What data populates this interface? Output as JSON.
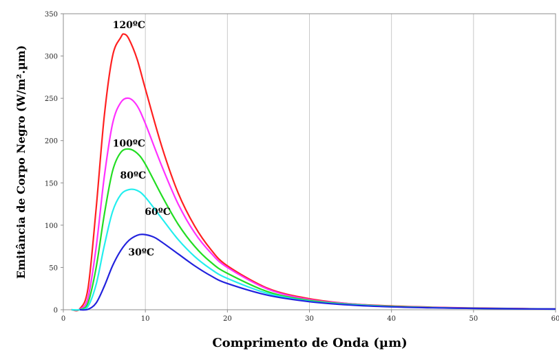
{
  "chart_data": {
    "type": "line",
    "title": "",
    "xlabel": "Comprimento de Onda (µm)",
    "ylabel": "Emitância de Corpo Negro (W/m².µm)",
    "xlim": [
      0,
      60
    ],
    "ylim": [
      0,
      350
    ],
    "xticks": [
      0,
      10,
      20,
      30,
      40,
      50,
      60
    ],
    "yticks": [
      0,
      50,
      100,
      150,
      200,
      250,
      300,
      350
    ],
    "grid": "vertical",
    "legend": "none",
    "series": [
      {
        "name": "120ºC",
        "color": "#ff2020",
        "x": [
          1,
          2,
          3,
          4,
          5,
          6,
          7,
          7.4,
          8,
          9,
          10,
          12,
          14,
          16,
          18,
          20,
          25,
          30,
          35,
          40,
          45,
          50,
          55,
          60
        ],
        "y": [
          0,
          1,
          25,
          120,
          230,
          300,
          322,
          326,
          320,
          296,
          261,
          193,
          138,
          99,
          71,
          52,
          25,
          13,
          7,
          4.5,
          3,
          2,
          1.5,
          1
        ]
      },
      {
        "name": "",
        "color": "#ff30ff",
        "x": [
          1,
          2,
          3,
          4,
          5,
          6,
          7,
          8,
          9,
          10,
          12,
          14,
          16,
          18,
          20,
          25,
          30,
          35,
          40,
          45,
          50,
          55,
          60
        ],
        "y": [
          0,
          0.5,
          14,
          74,
          158,
          220,
          245,
          250,
          241,
          220,
          170,
          125,
          91,
          67,
          50,
          24,
          12,
          7,
          4,
          2.8,
          1.8,
          1.3,
          0.9
        ]
      },
      {
        "name": "100ºC",
        "color": "#22dd22",
        "x": [
          1,
          2,
          3,
          4,
          5,
          6,
          7,
          8,
          9,
          10,
          12,
          14,
          16,
          18,
          20,
          25,
          30,
          35,
          40,
          45,
          50,
          55,
          60
        ],
        "y": [
          0,
          0.2,
          8,
          50,
          113,
          164,
          186,
          190,
          185,
          172,
          135,
          101,
          75,
          56,
          43,
          21,
          11,
          6.5,
          4,
          2.6,
          1.7,
          1.2,
          0.8
        ]
      },
      {
        "name": "80ºC",
        "color": "#22eeee",
        "x": [
          1,
          2,
          3,
          4,
          5,
          6,
          7,
          8,
          9,
          10,
          12,
          14,
          16,
          18,
          20,
          25,
          30,
          35,
          40,
          45,
          50,
          55,
          60
        ],
        "y": [
          0,
          0,
          4,
          30,
          76,
          116,
          136,
          142,
          141,
          133,
          108,
          83,
          63,
          48,
          37,
          19,
          10,
          6,
          3.6,
          2.4,
          1.6,
          1.1,
          0.8
        ]
      },
      {
        "name": "30ºC",
        "color": "#2222dd",
        "x": [
          2,
          3,
          4,
          5,
          6,
          7,
          8,
          9,
          9.8,
          11,
          12,
          14,
          16,
          18,
          20,
          25,
          30,
          35,
          40,
          45,
          50,
          55,
          60
        ],
        "y": [
          0,
          0.5,
          8,
          28,
          52,
          70,
          82,
          88,
          89,
          86,
          80,
          66,
          52,
          40,
          31,
          17,
          9.5,
          5.5,
          3.4,
          2.3,
          1.6,
          1.1,
          0.8
        ]
      }
    ],
    "annotations": [
      {
        "text": "120ºC",
        "x": 8,
        "y": 333
      },
      {
        "text": "100ºC",
        "x": 8,
        "y": 193
      },
      {
        "text": "80ºC",
        "x": 8.5,
        "y": 155
      },
      {
        "text": "60ºC",
        "x": 11.5,
        "y": 112
      },
      {
        "text": "30ºC",
        "x": 9.5,
        "y": 64
      }
    ]
  }
}
